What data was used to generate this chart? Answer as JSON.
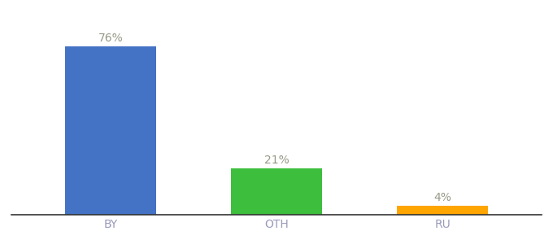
{
  "categories": [
    "BY",
    "OTH",
    "RU"
  ],
  "values": [
    76,
    21,
    4
  ],
  "bar_colors": [
    "#4472C4",
    "#3DBF3D",
    "#FFA500"
  ],
  "labels": [
    "76%",
    "21%",
    "4%"
  ],
  "ylim": [
    0,
    88
  ],
  "background_color": "#ffffff",
  "label_fontsize": 10,
  "tick_fontsize": 10,
  "bar_width": 0.55,
  "label_color": "#999988",
  "tick_color": "#9999BB",
  "xlim": [
    -0.5,
    2.5
  ]
}
